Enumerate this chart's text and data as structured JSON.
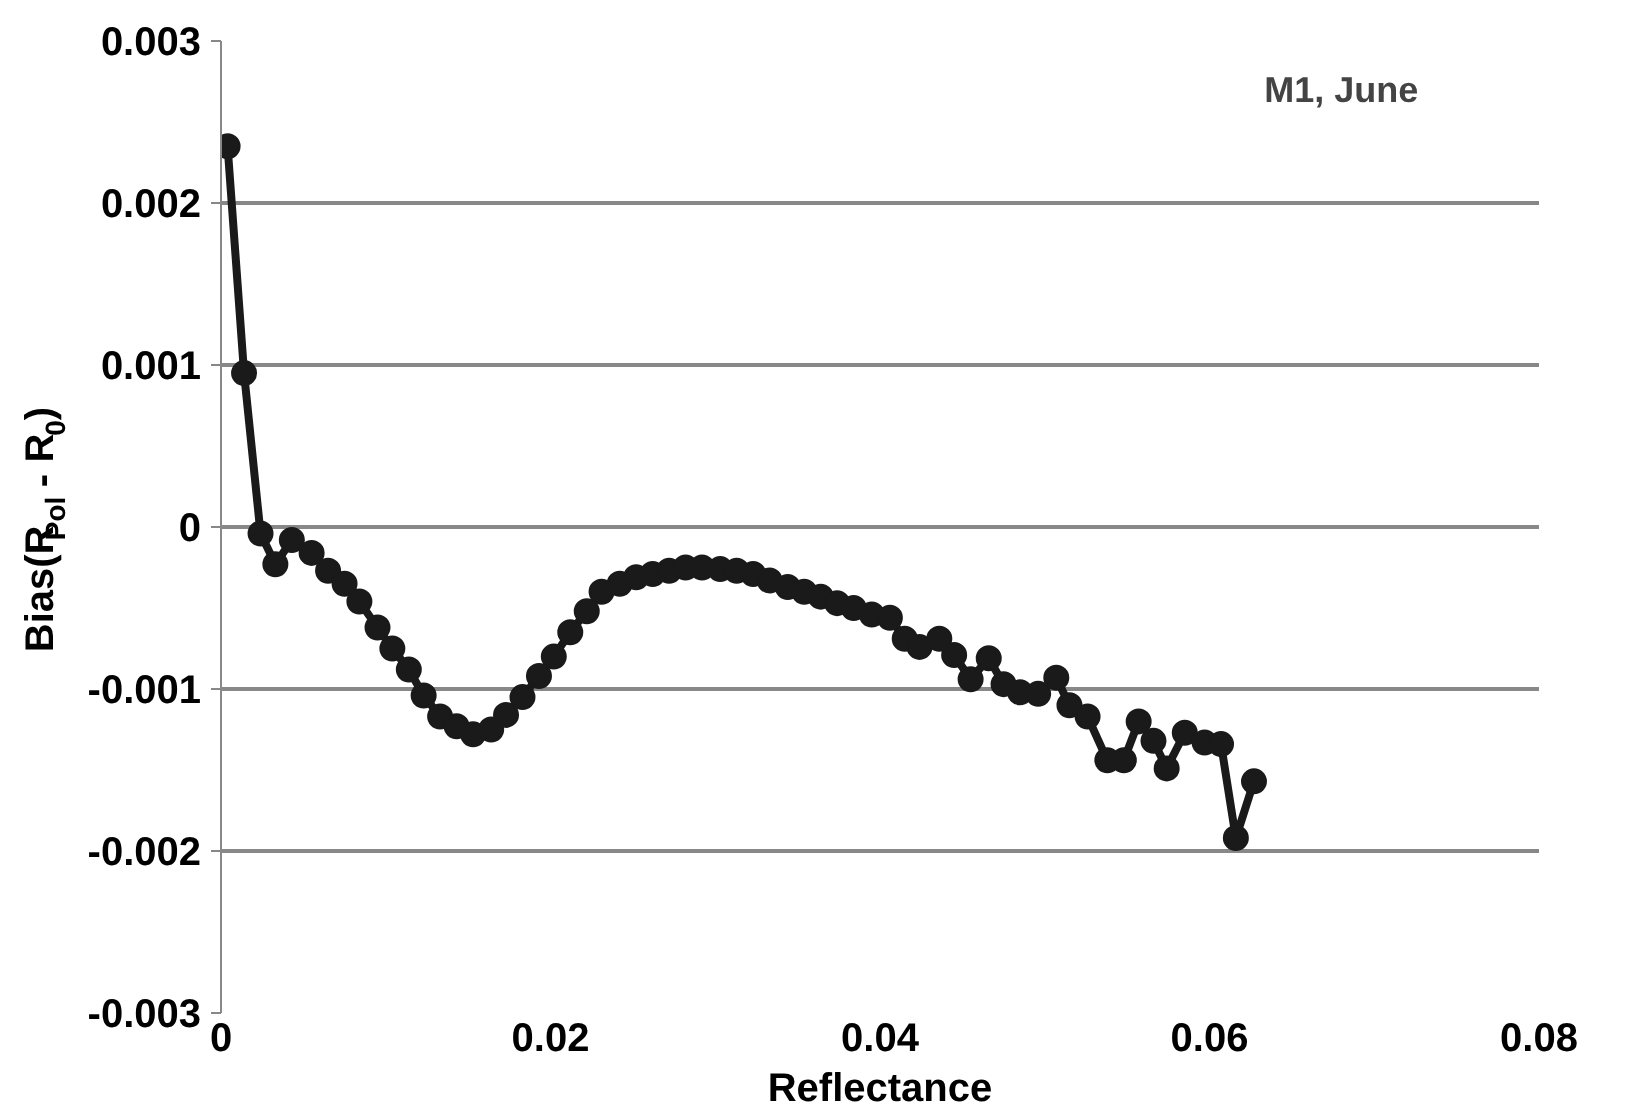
{
  "chart_data": {
    "type": "line",
    "xlabel": "Reflectance",
    "ylabel": "Bias(R$_{Pol}$ - R$_{0}$)",
    "annotations": [
      "M1, June"
    ],
    "x": [
      0.0004,
      0.0014,
      0.0024,
      0.0033,
      0.0043,
      0.0055,
      0.0065,
      0.0075,
      0.0084,
      0.0095,
      0.0104,
      0.0114,
      0.0123,
      0.0133,
      0.0143,
      0.0153,
      0.0164,
      0.0173,
      0.0183,
      0.0193,
      0.0202,
      0.0212,
      0.0222,
      0.0231,
      0.0242,
      0.0252,
      0.0262,
      0.0272,
      0.0282,
      0.0292,
      0.0303,
      0.0313,
      0.0323,
      0.0333,
      0.0344,
      0.0354,
      0.0364,
      0.0374,
      0.0384,
      0.0395,
      0.0406,
      0.0415,
      0.0424,
      0.0436,
      0.0445,
      0.0455,
      0.0466,
      0.0475,
      0.0485,
      0.0496,
      0.0507,
      0.0515,
      0.0526,
      0.0538,
      0.0548,
      0.0557,
      0.0566,
      0.0574,
      0.0585,
      0.0597,
      0.0607,
      0.0616,
      0.0627
    ],
    "series": [
      {
        "color": "#1a1a1a",
        "values": [
          0.00235,
          0.00095,
          -4e-05,
          -0.00023,
          -8e-05,
          -0.00016,
          -0.00027,
          -0.00035,
          -0.00046,
          -0.00062,
          -0.00075,
          -0.00088,
          -0.00104,
          -0.00117,
          -0.00123,
          -0.00128,
          -0.00125,
          -0.00116,
          -0.00105,
          -0.00092,
          -0.0008,
          -0.00065,
          -0.00052,
          -0.0004,
          -0.00035,
          -0.00031,
          -0.00029,
          -0.00027,
          -0.00025,
          -0.00025,
          -0.00026,
          -0.00027,
          -0.00029,
          -0.00033,
          -0.00037,
          -0.0004,
          -0.00043,
          -0.00047,
          -0.0005,
          -0.00054,
          -0.00056,
          -0.00069,
          -0.00074,
          -0.00069,
          -0.00079,
          -0.00094,
          -0.00081,
          -0.00097,
          -0.00102,
          -0.00103,
          -0.00093,
          -0.0011,
          -0.00117,
          -0.00144,
          -0.00144,
          -0.0012,
          -0.00132,
          -0.00149,
          -0.00127,
          -0.00133,
          -0.00134,
          -0.00192,
          -0.00157
        ]
      }
    ],
    "xlim": [
      0,
      0.08
    ],
    "xticks": [
      0,
      0.02,
      0.04,
      0.06,
      0.08
    ],
    "ylim": [
      -0.003,
      0.003
    ],
    "yticks": [
      -0.003,
      -0.002,
      -0.001,
      0,
      0.001,
      0.002,
      0.003
    ],
    "grid": "y",
    "marker": "circle",
    "line_style": "solid"
  }
}
